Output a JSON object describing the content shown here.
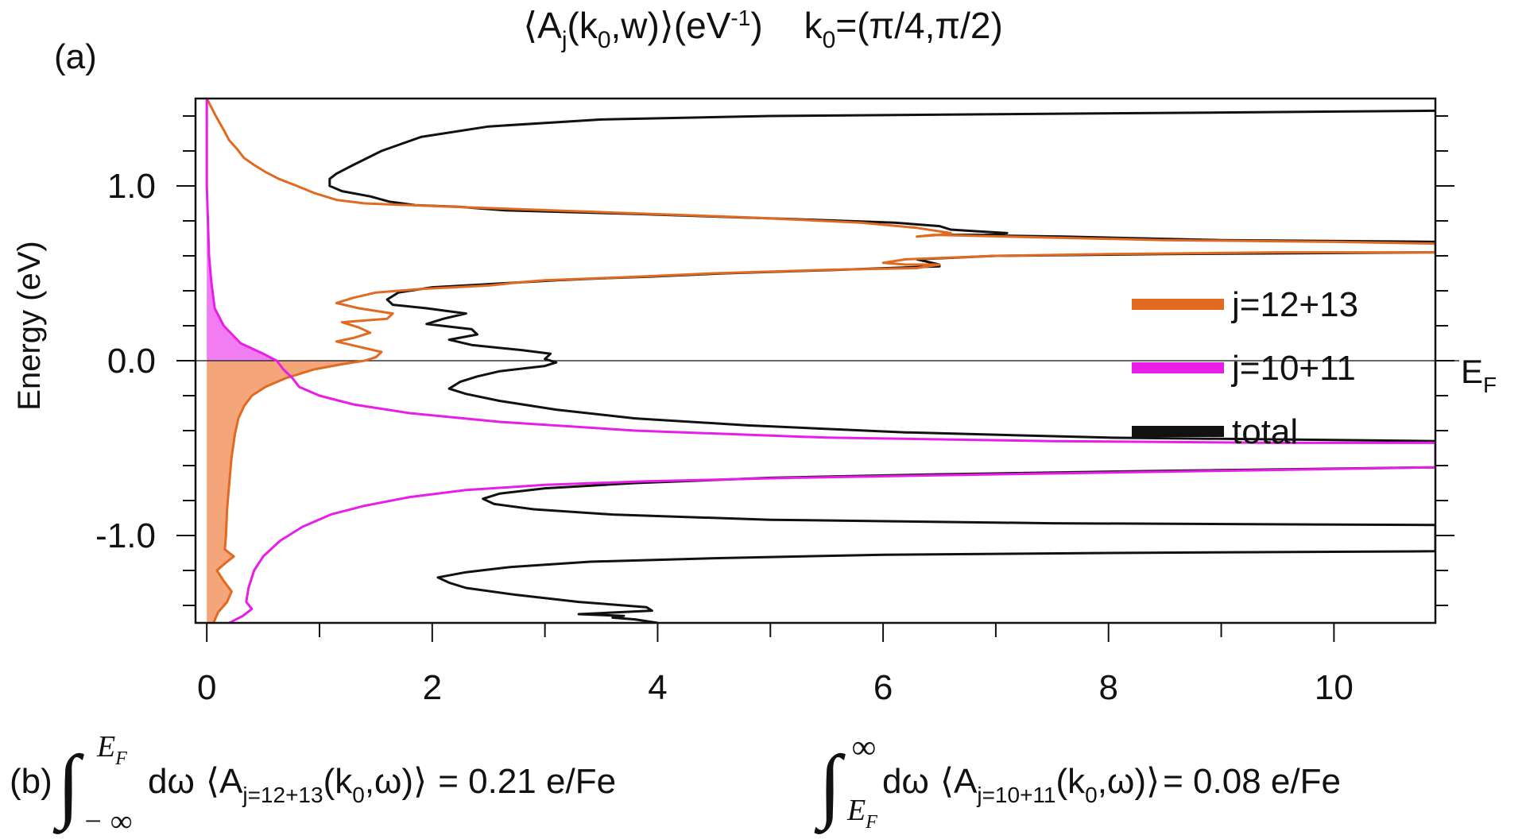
{
  "chart_data": {
    "type": "line",
    "title": {
      "A": "A",
      "j": "j",
      "k": "k",
      "zero": "0",
      "w": "w",
      "unit": "(eV",
      "unit_exp": "-1",
      "unit_close": ")",
      "k0_label": "k",
      "k0_sub": "0",
      "k0_value": "=(π/4,π/2)"
    },
    "panel_label_a": "(a)",
    "ylabel": "Energy (eV)",
    "xlabel": "",
    "xlim": [
      -0.1,
      10.9
    ],
    "ylim": [
      -1.5,
      1.5
    ],
    "xticks": [
      0,
      2,
      4,
      6,
      8,
      10
    ],
    "xtick_labels": [
      "0",
      "2",
      "4",
      "6",
      "8",
      "10"
    ],
    "yticks": [
      1.0,
      0.0,
      -1.0
    ],
    "ytick_labels": [
      "1.0",
      "0.0",
      "-1.0"
    ],
    "fermi_level": {
      "value": 0.0,
      "label_main": "E",
      "label_sub": "F"
    },
    "grid": false,
    "legend_position": "right",
    "series": [
      {
        "name": "j=12+13",
        "color": "#e06a20",
        "fill_below_EF": "#f4a57a",
        "points": [
          [
            0.0,
            1.5
          ],
          [
            0.08,
            1.4
          ],
          [
            0.15,
            1.32
          ],
          [
            0.2,
            1.26
          ],
          [
            0.27,
            1.21
          ],
          [
            0.33,
            1.16
          ],
          [
            0.42,
            1.12
          ],
          [
            0.52,
            1.08
          ],
          [
            0.64,
            1.04
          ],
          [
            0.8,
            1.0
          ],
          [
            0.95,
            0.96
          ],
          [
            1.15,
            0.92
          ],
          [
            1.4,
            0.9
          ],
          [
            2.2,
            0.88
          ],
          [
            3.5,
            0.85
          ],
          [
            4.8,
            0.82
          ],
          [
            5.8,
            0.79
          ],
          [
            6.3,
            0.76
          ],
          [
            6.5,
            0.74
          ],
          [
            6.6,
            0.73
          ],
          [
            6.5,
            0.72
          ],
          [
            6.3,
            0.71
          ],
          [
            6.45,
            0.72
          ],
          [
            7.1,
            0.71
          ],
          [
            8.5,
            0.69
          ],
          [
            10.0,
            0.68
          ],
          [
            10.9,
            0.67
          ],
          [
            10.9,
            0.62
          ],
          [
            9.5,
            0.62
          ],
          [
            8.0,
            0.61
          ],
          [
            7.0,
            0.6
          ],
          [
            6.2,
            0.58
          ],
          [
            6.0,
            0.56
          ],
          [
            6.2,
            0.55
          ],
          [
            6.5,
            0.55
          ],
          [
            6.3,
            0.53
          ],
          [
            5.5,
            0.52
          ],
          [
            4.5,
            0.5
          ],
          [
            3.8,
            0.48
          ],
          [
            3.4,
            0.47
          ],
          [
            3.0,
            0.46
          ],
          [
            2.8,
            0.45
          ],
          [
            2.5,
            0.43
          ],
          [
            1.9,
            0.41
          ],
          [
            1.5,
            0.39
          ],
          [
            1.3,
            0.36
          ],
          [
            1.15,
            0.33
          ],
          [
            1.35,
            0.3
          ],
          [
            1.65,
            0.27
          ],
          [
            1.6,
            0.24
          ],
          [
            1.4,
            0.23
          ],
          [
            1.2,
            0.22
          ],
          [
            1.35,
            0.19
          ],
          [
            1.45,
            0.16
          ],
          [
            1.3,
            0.13
          ],
          [
            1.15,
            0.11
          ],
          [
            1.35,
            0.08
          ],
          [
            1.55,
            0.05
          ],
          [
            1.5,
            0.02
          ],
          [
            1.4,
            0.0
          ],
          [
            1.2,
            -0.02
          ],
          [
            0.95,
            -0.05
          ],
          [
            0.7,
            -0.1
          ],
          [
            0.52,
            -0.15
          ],
          [
            0.4,
            -0.2
          ],
          [
            0.33,
            -0.26
          ],
          [
            0.28,
            -0.33
          ],
          [
            0.25,
            -0.42
          ],
          [
            0.22,
            -0.55
          ],
          [
            0.2,
            -0.7
          ],
          [
            0.18,
            -0.85
          ],
          [
            0.17,
            -1.0
          ],
          [
            0.16,
            -1.08
          ],
          [
            0.24,
            -1.12
          ],
          [
            0.16,
            -1.16
          ],
          [
            0.09,
            -1.2
          ],
          [
            0.15,
            -1.26
          ],
          [
            0.22,
            -1.32
          ],
          [
            0.18,
            -1.38
          ],
          [
            0.1,
            -1.44
          ],
          [
            0.06,
            -1.5
          ]
        ]
      },
      {
        "name": "j=10+11",
        "color": "#e81ee8",
        "fill_above_EF": "#f27cf2",
        "points": [
          [
            0.0,
            1.5
          ],
          [
            0.0,
            1.0
          ],
          [
            0.01,
            0.8
          ],
          [
            0.02,
            0.6
          ],
          [
            0.04,
            0.45
          ],
          [
            0.07,
            0.3
          ],
          [
            0.15,
            0.2
          ],
          [
            0.3,
            0.1
          ],
          [
            0.5,
            0.04
          ],
          [
            0.62,
            0.0
          ],
          [
            0.68,
            -0.05
          ],
          [
            0.76,
            -0.1
          ],
          [
            0.82,
            -0.15
          ],
          [
            1.0,
            -0.2
          ],
          [
            1.3,
            -0.25
          ],
          [
            1.8,
            -0.3
          ],
          [
            2.6,
            -0.35
          ],
          [
            3.8,
            -0.4
          ],
          [
            5.5,
            -0.44
          ],
          [
            7.5,
            -0.46
          ],
          [
            9.5,
            -0.47
          ],
          [
            10.9,
            -0.47
          ],
          [
            10.9,
            -0.61
          ],
          [
            9.0,
            -0.63
          ],
          [
            7.0,
            -0.65
          ],
          [
            5.2,
            -0.67
          ],
          [
            3.9,
            -0.69
          ],
          [
            3.0,
            -0.71
          ],
          [
            2.3,
            -0.74
          ],
          [
            1.8,
            -0.78
          ],
          [
            1.4,
            -0.83
          ],
          [
            1.1,
            -0.88
          ],
          [
            0.85,
            -0.95
          ],
          [
            0.65,
            -1.03
          ],
          [
            0.5,
            -1.12
          ],
          [
            0.42,
            -1.2
          ],
          [
            0.37,
            -1.3
          ],
          [
            0.35,
            -1.38
          ],
          [
            0.4,
            -1.42
          ],
          [
            0.32,
            -1.46
          ],
          [
            0.2,
            -1.5
          ]
        ]
      },
      {
        "name": "total",
        "color": "#111111",
        "points": [
          [
            10.9,
            1.43
          ],
          [
            9.0,
            1.42
          ],
          [
            7.0,
            1.41
          ],
          [
            5.0,
            1.4
          ],
          [
            3.5,
            1.38
          ],
          [
            2.5,
            1.34
          ],
          [
            1.9,
            1.28
          ],
          [
            1.55,
            1.2
          ],
          [
            1.3,
            1.12
          ],
          [
            1.15,
            1.07
          ],
          [
            1.09,
            1.04
          ],
          [
            1.09,
            1.0
          ],
          [
            1.2,
            0.97
          ],
          [
            1.45,
            0.94
          ],
          [
            1.62,
            0.91
          ],
          [
            1.85,
            0.89
          ],
          [
            2.25,
            0.88
          ],
          [
            2.45,
            0.87
          ],
          [
            2.65,
            0.86
          ],
          [
            3.8,
            0.84
          ],
          [
            5.2,
            0.81
          ],
          [
            6.1,
            0.79
          ],
          [
            6.5,
            0.77
          ],
          [
            6.6,
            0.75
          ],
          [
            6.85,
            0.74
          ],
          [
            7.1,
            0.73
          ],
          [
            6.9,
            0.72
          ],
          [
            6.6,
            0.72
          ],
          [
            7.6,
            0.71
          ],
          [
            9.0,
            0.69
          ],
          [
            10.9,
            0.68
          ],
          [
            10.9,
            0.62
          ],
          [
            8.5,
            0.61
          ],
          [
            7.0,
            0.6
          ],
          [
            6.3,
            0.58
          ],
          [
            6.5,
            0.55
          ],
          [
            6.5,
            0.54
          ],
          [
            5.6,
            0.52
          ],
          [
            4.6,
            0.5
          ],
          [
            3.9,
            0.48
          ],
          [
            3.45,
            0.47
          ],
          [
            3.1,
            0.46
          ],
          [
            2.55,
            0.44
          ],
          [
            2.0,
            0.42
          ],
          [
            1.7,
            0.39
          ],
          [
            1.6,
            0.35
          ],
          [
            1.65,
            0.32
          ],
          [
            1.95,
            0.3
          ],
          [
            2.3,
            0.27
          ],
          [
            2.1,
            0.24
          ],
          [
            1.95,
            0.21
          ],
          [
            2.35,
            0.18
          ],
          [
            2.4,
            0.15
          ],
          [
            2.15,
            0.12
          ],
          [
            2.35,
            0.09
          ],
          [
            2.8,
            0.06
          ],
          [
            3.05,
            0.04
          ],
          [
            3.0,
            0.01
          ],
          [
            3.1,
            -0.01
          ],
          [
            3.0,
            -0.03
          ],
          [
            2.6,
            -0.06
          ],
          [
            2.4,
            -0.09
          ],
          [
            2.25,
            -0.12
          ],
          [
            2.15,
            -0.16
          ],
          [
            2.3,
            -0.19
          ],
          [
            2.6,
            -0.23
          ],
          [
            3.1,
            -0.28
          ],
          [
            3.8,
            -0.33
          ],
          [
            4.8,
            -0.37
          ],
          [
            6.2,
            -0.41
          ],
          [
            8.0,
            -0.44
          ],
          [
            10.9,
            -0.46
          ],
          [
            10.9,
            -0.61
          ],
          [
            8.5,
            -0.63
          ],
          [
            6.5,
            -0.65
          ],
          [
            5.0,
            -0.67
          ],
          [
            3.8,
            -0.7
          ],
          [
            3.0,
            -0.73
          ],
          [
            2.6,
            -0.76
          ],
          [
            2.45,
            -0.79
          ],
          [
            2.55,
            -0.82
          ],
          [
            2.9,
            -0.85
          ],
          [
            3.6,
            -0.88
          ],
          [
            5.0,
            -0.91
          ],
          [
            7.5,
            -0.93
          ],
          [
            10.9,
            -0.94
          ],
          [
            10.9,
            -1.09
          ],
          [
            8.0,
            -1.1
          ],
          [
            6.0,
            -1.11
          ],
          [
            4.5,
            -1.13
          ],
          [
            3.4,
            -1.15
          ],
          [
            2.7,
            -1.18
          ],
          [
            2.3,
            -1.21
          ],
          [
            2.05,
            -1.24
          ],
          [
            2.15,
            -1.27
          ],
          [
            2.3,
            -1.3
          ],
          [
            2.75,
            -1.34
          ],
          [
            3.3,
            -1.38
          ],
          [
            3.9,
            -1.41
          ],
          [
            3.95,
            -1.43
          ],
          [
            3.3,
            -1.45
          ],
          [
            3.7,
            -1.46
          ],
          [
            3.6,
            -1.47
          ],
          [
            3.8,
            -1.48
          ],
          [
            4.0,
            -1.5
          ]
        ]
      }
    ],
    "legend_entries": [
      "j=12+13",
      "j=10+11",
      "total"
    ]
  },
  "panel_b": {
    "label": "(b)",
    "integral1": {
      "upper_main": "E",
      "upper_sub": "F",
      "lower": "− ∞",
      "d_omega": "dω",
      "A": "A",
      "sub": "j=12+13",
      "arg_k": "(k",
      "arg_k_sub": "0",
      "arg_rest": ",ω)",
      "result": "= 0.21 e/Fe"
    },
    "integral2": {
      "upper": "∞",
      "lower_main": "E",
      "lower_sub": "F",
      "d_omega": "dω",
      "A": "A",
      "sub": "j=10+11",
      "arg_k": "(k",
      "arg_k_sub": "0",
      "arg_rest": ",ω)",
      "result": "= 0.08 e/Fe"
    }
  }
}
